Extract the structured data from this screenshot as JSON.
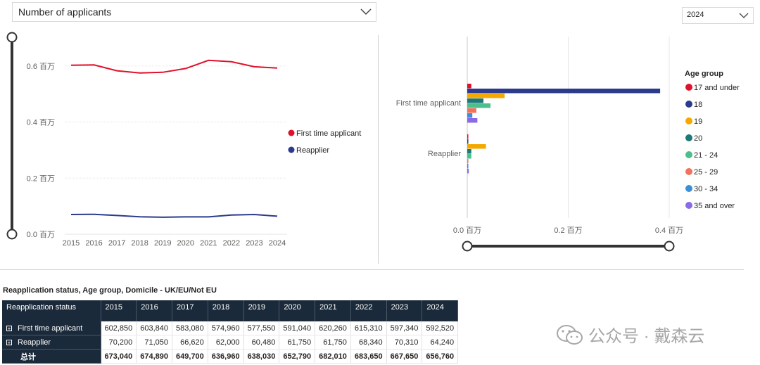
{
  "metric_select": {
    "value": "Number of applicants"
  },
  "year_select": {
    "value": "2024"
  },
  "line_chart": {
    "title": "",
    "legend": [
      {
        "name": "First time applicant",
        "color": "#e0112b"
      },
      {
        "name": "Reapplier",
        "color": "#2b3a8c"
      }
    ]
  },
  "bar_chart": {
    "legend_title": "Age group"
  },
  "table": {
    "title": "Reapplication status, Age group, Domicile - UK/EU/Not EU",
    "row_header": "Reapplication status",
    "years": [
      "2015",
      "2016",
      "2017",
      "2018",
      "2019",
      "2020",
      "2021",
      "2022",
      "2023",
      "2024"
    ],
    "rows": [
      {
        "label": "First time applicant",
        "expand": "⊞",
        "values": [
          "602,850",
          "603,840",
          "583,080",
          "574,960",
          "577,550",
          "591,040",
          "620,260",
          "615,310",
          "597,340",
          "592,520"
        ]
      },
      {
        "label": "Reapplier",
        "expand": "⊞",
        "values": [
          "70,200",
          "71,050",
          "66,620",
          "62,000",
          "60,480",
          "61,750",
          "61,750",
          "68,340",
          "70,310",
          "64,240"
        ]
      }
    ],
    "total": {
      "label": "总计",
      "values": [
        "673,040",
        "674,890",
        "649,700",
        "636,960",
        "638,030",
        "652,790",
        "682,010",
        "683,650",
        "667,650",
        "656,760"
      ]
    }
  },
  "watermark": {
    "text": "公众号 · 戴森云"
  },
  "chart_data": [
    {
      "type": "line",
      "title": "",
      "x": [
        "2015",
        "2016",
        "2017",
        "2018",
        "2019",
        "2020",
        "2021",
        "2022",
        "2023",
        "2024"
      ],
      "series": [
        {
          "name": "First time applicant",
          "color": "#e0112b",
          "values": [
            602850,
            603840,
            583080,
            574960,
            577550,
            591040,
            620260,
            615310,
            597340,
            592520
          ]
        },
        {
          "name": "Reapplier",
          "color": "#2b3a8c",
          "values": [
            70200,
            71050,
            66620,
            62000,
            60480,
            61750,
            61750,
            68340,
            70310,
            64240
          ]
        }
      ],
      "ylim": [
        0,
        700000
      ],
      "yticks": [
        0,
        200000,
        400000,
        600000
      ],
      "ytick_labels": [
        "0.0 百万",
        "0.2 百万",
        "0.4 百万",
        "0.6 百万"
      ],
      "legend_position": "right"
    },
    {
      "type": "bar",
      "orientation": "horizontal",
      "categories": [
        "First time applicant",
        "Reapplier"
      ],
      "legend_title": "Age group",
      "series": [
        {
          "name": "17 and under",
          "color": "#e0112b",
          "values": [
            8000,
            800
          ]
        },
        {
          "name": "18",
          "color": "#2b3a8c",
          "values": [
            382000,
            800
          ]
        },
        {
          "name": "19",
          "color": "#f5a800",
          "values": [
            74000,
            37000
          ]
        },
        {
          "name": "20",
          "color": "#1b7a78",
          "values": [
            32000,
            8000
          ]
        },
        {
          "name": "21 - 24",
          "color": "#4cbf8c",
          "values": [
            46000,
            8000
          ]
        },
        {
          "name": "25 - 29",
          "color": "#f2735c",
          "values": [
            18000,
            2000
          ]
        },
        {
          "name": "30 - 34",
          "color": "#3c8fd6",
          "values": [
            10000,
            1500
          ]
        },
        {
          "name": "35 and over",
          "color": "#8a6ae6",
          "values": [
            20000,
            3000
          ]
        }
      ],
      "xlim": [
        0,
        400000
      ],
      "xticks": [
        0,
        200000,
        400000
      ],
      "xtick_labels": [
        "0.0 百万",
        "0.2 百万",
        "0.4 百万"
      ],
      "legend_position": "right"
    }
  ]
}
